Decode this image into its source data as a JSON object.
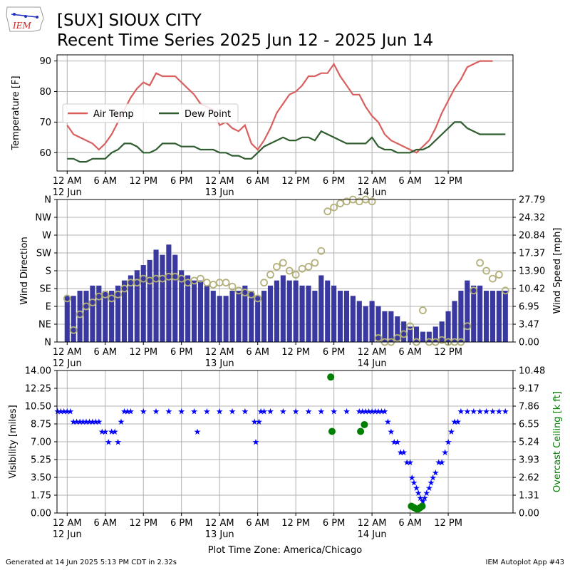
{
  "header": {
    "title_line1": "[SUX] SIOUX CITY",
    "title_line2": "Recent Time Series 2025 Jun 12 - 2025 Jun 14",
    "logo_text": "IEM"
  },
  "footer": {
    "generated": "Generated at 14 Jun 2025 5:13 PM CDT in 2.32s",
    "app": "IEM Autoplot App #43"
  },
  "colors": {
    "air_temp": "#d95f5f",
    "dew_point": "#2f5d2f",
    "wind_bars": "#2e2e9a",
    "wind_dir": "#b3b07a",
    "visibility": "#0000ff",
    "ceiling": "#008000",
    "grid": "#b0b0b0"
  },
  "time_axis": {
    "start_hour": -1.6,
    "end_hour": 70.2,
    "tick_hours": [
      0,
      6,
      12,
      18,
      24,
      30,
      36,
      42,
      48,
      54,
      60
    ],
    "tick_labels": [
      "12 AM",
      "6 AM",
      "12 PM",
      "6 PM",
      "12 AM",
      "6 AM",
      "12 PM",
      "6 PM",
      "12 AM",
      "6 AM",
      "12 PM"
    ],
    "date_labels": [
      {
        "hour": 0,
        "label": "12 Jun"
      },
      {
        "hour": 24,
        "label": "13 Jun"
      },
      {
        "hour": 48,
        "label": "14 Jun"
      }
    ],
    "xlabel": "Plot Time Zone: America/Chicago"
  },
  "chart_data": [
    {
      "type": "line",
      "ylabel": "Temperature [F]",
      "ylim": [
        54,
        92
      ],
      "yticks": [
        60,
        70,
        80,
        90
      ],
      "legend_position": "upper-left",
      "series": [
        {
          "name": "Air Temp",
          "x": [
            0,
            1,
            2,
            3,
            4,
            5,
            6,
            7,
            8,
            9,
            10,
            11,
            12,
            13,
            14,
            15,
            16,
            17,
            18,
            19,
            20,
            21,
            22,
            23,
            24,
            25,
            26,
            27,
            28,
            29,
            30,
            31,
            32,
            33,
            34,
            35,
            36,
            37,
            38,
            39,
            40,
            41,
            42,
            43,
            44,
            45,
            46,
            47,
            48,
            49,
            50,
            51,
            52,
            53,
            54,
            55,
            56,
            57,
            58,
            59,
            60,
            61,
            62,
            63,
            64,
            65,
            66,
            67
          ],
          "values": [
            69,
            66,
            65,
            64,
            63,
            61,
            63,
            66,
            70,
            74,
            78,
            81,
            83,
            82,
            86,
            85,
            85,
            85,
            83,
            81,
            79,
            76,
            75,
            74,
            69,
            70,
            68,
            67,
            69,
            63,
            61,
            64,
            68,
            73,
            76,
            79,
            80,
            82,
            85,
            85,
            86,
            86,
            89,
            85,
            82,
            79,
            79,
            75,
            72,
            70,
            66,
            64,
            63,
            62,
            61,
            60,
            62,
            64,
            68,
            73,
            77,
            81,
            84,
            88,
            89,
            90,
            90,
            90
          ]
        },
        {
          "name": "Dew Point",
          "x": [
            0,
            1,
            2,
            3,
            4,
            5,
            6,
            7,
            8,
            9,
            10,
            11,
            12,
            13,
            14,
            15,
            16,
            17,
            18,
            19,
            20,
            21,
            22,
            23,
            24,
            25,
            26,
            27,
            28,
            29,
            30,
            31,
            32,
            33,
            34,
            35,
            36,
            37,
            38,
            39,
            40,
            41,
            42,
            43,
            44,
            45,
            46,
            47,
            48,
            49,
            50,
            51,
            52,
            53,
            54,
            55,
            56,
            57,
            58,
            59,
            60,
            61,
            62,
            63,
            64,
            65,
            66,
            67,
            68,
            69
          ],
          "values": [
            58,
            58,
            57,
            57,
            58,
            58,
            58,
            60,
            61,
            63,
            63,
            62,
            60,
            60,
            61,
            63,
            63,
            63,
            62,
            62,
            62,
            61,
            61,
            61,
            60,
            60,
            59,
            59,
            58,
            58,
            60,
            62,
            63,
            64,
            65,
            64,
            64,
            65,
            65,
            64,
            67,
            66,
            65,
            64,
            63,
            63,
            63,
            63,
            65,
            62,
            61,
            61,
            60,
            60,
            60,
            61,
            61,
            62,
            64,
            66,
            68,
            70,
            70,
            68,
            67,
            66,
            66,
            66,
            66,
            66
          ]
        }
      ]
    },
    {
      "type": "bar",
      "ylabel": "Wind Direction",
      "y2label": "Wind Speed [mph]",
      "ylim": [
        0,
        360
      ],
      "yticks": [
        0,
        45,
        90,
        135,
        180,
        225,
        270,
        315,
        360
      ],
      "yticklabels": [
        "N",
        "NE",
        "E",
        "SE",
        "S",
        "SW",
        "W",
        "NW",
        "N"
      ],
      "y2lim": [
        0,
        27.79
      ],
      "y2ticks": [
        0.0,
        3.47,
        6.95,
        10.42,
        13.9,
        17.37,
        20.84,
        24.32,
        27.79
      ],
      "y2ticklabels": [
        "0.00",
        "3.47",
        "6.95",
        "10.42",
        "13.90",
        "17.37",
        "20.84",
        "24.32",
        "27.79"
      ],
      "series": [
        {
          "name": "Wind Speed",
          "x": [
            0,
            1,
            2,
            3,
            4,
            5,
            6,
            7,
            8,
            9,
            10,
            11,
            12,
            13,
            14,
            15,
            16,
            17,
            18,
            19,
            20,
            21,
            22,
            23,
            24,
            25,
            26,
            27,
            28,
            29,
            30,
            31,
            32,
            33,
            34,
            35,
            36,
            37,
            38,
            39,
            40,
            41,
            42,
            43,
            44,
            45,
            46,
            47,
            48,
            49,
            50,
            51,
            52,
            53,
            54,
            55,
            56,
            57,
            58,
            59,
            60,
            61,
            62,
            63,
            64,
            65,
            66,
            67,
            68,
            69
          ],
          "values": [
            9,
            9,
            10,
            10,
            11,
            11,
            10,
            10,
            11,
            12,
            13,
            14,
            15,
            16,
            18,
            17,
            19,
            17,
            14,
            13,
            12,
            12,
            11,
            10,
            9,
            9,
            10,
            10,
            11,
            10,
            9,
            10,
            11,
            12,
            13,
            12,
            12,
            11,
            11,
            10,
            13,
            12,
            11,
            10,
            10,
            9,
            8,
            7,
            8,
            7,
            6,
            6,
            5,
            4,
            3,
            3,
            2,
            2,
            3,
            4,
            6,
            8,
            10,
            12,
            11,
            11,
            10,
            10,
            10,
            10
          ]
        },
        {
          "name": "Wind Direction",
          "x": [
            0,
            1,
            2,
            3,
            4,
            5,
            6,
            7,
            8,
            9,
            10,
            11,
            12,
            13,
            14,
            15,
            16,
            17,
            18,
            19,
            20,
            21,
            22,
            23,
            24,
            25,
            26,
            27,
            28,
            29,
            30,
            31,
            32,
            33,
            34,
            35,
            36,
            37,
            38,
            39,
            40,
            41,
            42,
            43,
            44,
            45,
            46,
            47,
            48,
            49,
            50,
            51,
            52,
            53,
            54,
            55,
            56,
            57,
            58,
            59,
            60,
            61,
            62,
            63,
            64,
            65,
            66,
            67,
            68,
            69
          ],
          "values": [
            110,
            30,
            70,
            90,
            100,
            115,
            120,
            110,
            120,
            135,
            150,
            150,
            160,
            155,
            160,
            160,
            165,
            165,
            160,
            150,
            155,
            160,
            150,
            145,
            150,
            150,
            140,
            130,
            125,
            120,
            110,
            150,
            170,
            190,
            200,
            180,
            170,
            185,
            190,
            200,
            230,
            330,
            340,
            350,
            355,
            360,
            355,
            360,
            355,
            10,
            0,
            0,
            10,
            20,
            40,
            0,
            80,
            0,
            0,
            5,
            0,
            0,
            0,
            40,
            130,
            200,
            180,
            160,
            170,
            130
          ]
        }
      ]
    },
    {
      "type": "scatter",
      "ylabel": "Visibility [miles]",
      "y2label": "Overcast Ceiling [k ft]",
      "ylim": [
        0,
        14
      ],
      "yticks": [
        0,
        1.75,
        3.5,
        5.25,
        7.0,
        8.75,
        10.5,
        12.25,
        14.0
      ],
      "yticklabels": [
        "0.00",
        "1.75",
        "3.50",
        "5.25",
        "7.00",
        "8.75",
        "10.50",
        "12.25",
        "14.00"
      ],
      "y2lim": [
        0,
        10.48
      ],
      "y2ticks": [
        0,
        1.31,
        2.62,
        3.93,
        5.24,
        6.55,
        7.86,
        9.17,
        10.48
      ],
      "y2ticklabels": [
        "0.00",
        "1.31",
        "2.62",
        "3.93",
        "5.24",
        "6.55",
        "7.86",
        "9.17",
        "10.48"
      ],
      "series": [
        {
          "name": "Visibility",
          "x": [
            -1.5,
            -1,
            -0.5,
            0,
            0.5,
            1,
            1.5,
            2,
            2.5,
            3,
            3.5,
            4,
            4.5,
            5,
            5.5,
            6,
            6.5,
            7,
            7.5,
            8,
            8.5,
            9,
            9.5,
            10,
            12,
            14,
            16,
            18,
            20,
            20.5,
            22,
            24,
            26,
            28,
            29.5,
            29.7,
            30.2,
            30.5,
            31,
            32,
            34,
            36,
            38,
            40,
            42,
            44,
            46,
            46.5,
            47,
            47.5,
            48,
            48.5,
            49,
            49.5,
            50,
            50.5,
            51,
            51.5,
            52,
            52.5,
            53,
            53.5,
            54,
            54.3,
            54.6,
            55,
            55.3,
            55.6,
            56,
            56.3,
            56.6,
            57,
            57.3,
            57.6,
            58,
            58.5,
            59,
            59.5,
            60,
            60.5,
            61,
            61.5,
            62,
            63,
            64,
            65,
            66,
            67,
            68,
            69
          ],
          "values": [
            10,
            10,
            10,
            10,
            10,
            9,
            9,
            9,
            9,
            9,
            9,
            9,
            9,
            9,
            8,
            8,
            7,
            8,
            8,
            7,
            9,
            10,
            10,
            10,
            10,
            10,
            10,
            10,
            10,
            8,
            10,
            10,
            10,
            10,
            9,
            7,
            9,
            10,
            10,
            10,
            10,
            10,
            10,
            10,
            10,
            10,
            10,
            10,
            10,
            10,
            10,
            10,
            10,
            10,
            10,
            9,
            8,
            7,
            7,
            6,
            6,
            5,
            5,
            3.5,
            3,
            2.5,
            2,
            1.5,
            1.2,
            1.5,
            2,
            2.5,
            3,
            3.5,
            4,
            5,
            5,
            6,
            7,
            8,
            9,
            9,
            10,
            10,
            10,
            10,
            10,
            10,
            10,
            10
          ]
        },
        {
          "name": "Overcast Ceiling",
          "x": [
            41.5,
            41.7,
            46.2,
            46.8,
            54.2,
            54.6,
            55.0,
            55.3,
            55.6,
            55.9
          ],
          "values": [
            10.0,
            6.0,
            6.0,
            6.5,
            0.5,
            0.4,
            0.3,
            0.3,
            0.4,
            0.5
          ]
        }
      ]
    }
  ]
}
